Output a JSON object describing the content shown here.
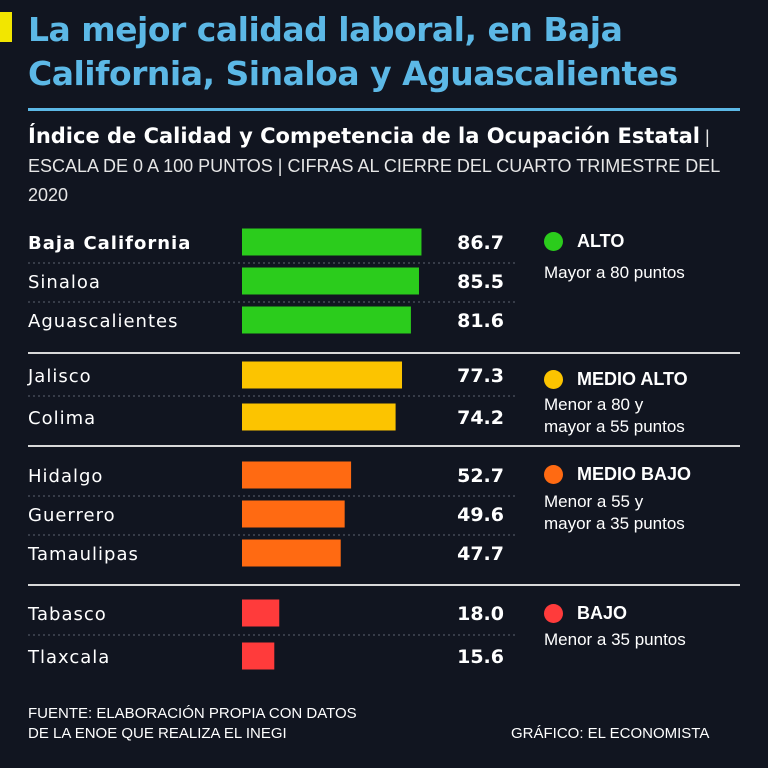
{
  "header": {
    "title": "La mejor calidad laboral, en Baja California, Sinaloa y Aguascalientes",
    "subtitle_bold": "Índice de Calidad y Competencia de la Ocupación Estatal",
    "subtitle_rest": " | ESCALA DE 0 A 100 PUNTOS | CIFRAS AL CIERRE DEL CUARTO TRIMESTRE DEL 2020"
  },
  "colors": {
    "background": "#111520",
    "title": "#5cb8e6",
    "alto": "#2bcc1c",
    "medio_alto": "#fcc400",
    "medio_bajo": "#ff6a12",
    "bajo": "#ff3b3b"
  },
  "chart_data": {
    "type": "bar",
    "orientation": "horizontal",
    "title": "Índice de Calidad y Competencia de la Ocupación Estatal",
    "xlim": [
      0,
      100
    ],
    "categories": [
      "Baja California",
      "Sinaloa",
      "Aguascalientes",
      "Jalisco",
      "Colima",
      "Hidalgo",
      "Guerrero",
      "Tamaulipas",
      "Tabasco",
      "Tlaxcala"
    ],
    "values": [
      86.7,
      85.5,
      81.6,
      77.3,
      74.2,
      52.7,
      49.6,
      47.7,
      18.0,
      15.6
    ],
    "value_labels": [
      "86.7",
      "85.5",
      "81.6",
      "77.3",
      "74.2",
      "52.7",
      "49.6",
      "47.7",
      "18.0",
      "15.6"
    ],
    "levels": [
      "alto",
      "alto",
      "alto",
      "medio_alto",
      "medio_alto",
      "medio_bajo",
      "medio_bajo",
      "medio_bajo",
      "bajo",
      "bajo"
    ],
    "highlight": "Baja California"
  },
  "legend": [
    {
      "key": "alto",
      "name": "ALTO",
      "desc": [
        "Mayor a 80 puntos"
      ]
    },
    {
      "key": "medio_alto",
      "name": "MEDIO ALTO",
      "desc": [
        "Menor a 80 y",
        "mayor a 55 puntos"
      ]
    },
    {
      "key": "medio_bajo",
      "name": "MEDIO BAJO",
      "desc": [
        "Menor a 55 y",
        "mayor a 35 puntos"
      ]
    },
    {
      "key": "bajo",
      "name": "BAJO",
      "desc": [
        "Menor a 35 puntos"
      ]
    }
  ],
  "footer": {
    "source_line1": "FUENTE: ELABORACIÓN PROPIA CON DATOS",
    "source_line2": "DE LA ENOE QUE REALIZA EL INEGI",
    "credit": "GRÁFICO: EL ECONOMISTA"
  }
}
